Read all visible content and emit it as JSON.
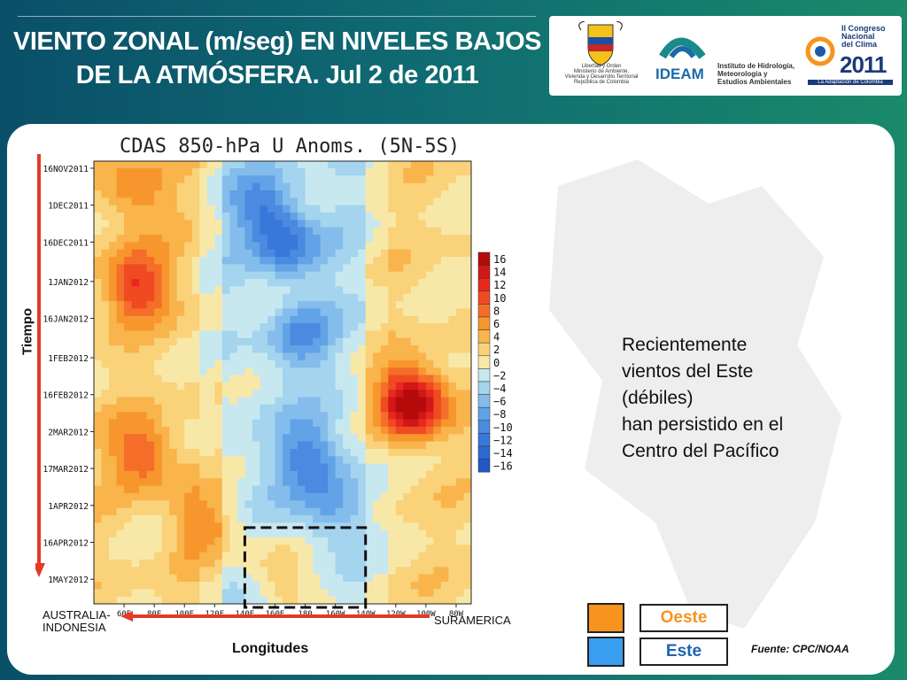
{
  "header": {
    "title_line1": "VIENTO ZONAL (m/seg) EN NIVELES BAJOS",
    "title_line2": "DE LA ATMÓSFERA. Jul 2 de 2011"
  },
  "logos": {
    "ministry_lines": [
      "Libertad y Orden",
      "Ministerio de Ambiente,",
      "Vivienda y Desarrollo Territorial",
      "República de Colombia"
    ],
    "ideam_name": "IDEAM",
    "ideam_lines": [
      "Instituto de Hidrología,",
      "Meteorología y",
      "Estudios Ambientales"
    ],
    "congreso_lines": [
      "II Congreso",
      "Nacional",
      "del Clima"
    ],
    "congreso_year": "2011",
    "congreso_tagline": "La Adaptación de Colombia"
  },
  "chart_data": {
    "type": "heatmap",
    "title": "CDAS 850-hPa U Anoms. (5N-5S)",
    "xlabel": "Longitudes",
    "ylabel": "Tiempo",
    "x_ticks": [
      "60E",
      "80E",
      "100E",
      "120E",
      "140E",
      "160E",
      "180",
      "160W",
      "140W",
      "120W",
      "100W",
      "80W"
    ],
    "y_ticks": [
      "16NOV2011",
      "1DEC2011",
      "16DEC2011",
      "1JAN2012",
      "16JAN2012",
      "1FEB2012",
      "16FEB2012",
      "2MAR2012",
      "17MAR2012",
      "1APR2012",
      "16APR2012",
      "1MAY2012"
    ],
    "colorbar_levels": [
      "16",
      "14",
      "12",
      "10",
      "8",
      "6",
      "4",
      "2",
      "0",
      "−2",
      "−4",
      "−6",
      "−8",
      "−10",
      "−12",
      "−14",
      "−16"
    ],
    "colorbar_colors": [
      "#b40a0a",
      "#d01818",
      "#e8281e",
      "#f04a22",
      "#f46e2a",
      "#f8962e",
      "#f9b44c",
      "#f9d27a",
      "#f8e8a8",
      "#c8e8f0",
      "#a4d4ee",
      "#84bcec",
      "#62a2e6",
      "#4a8ae0",
      "#3878d8",
      "#2c68d2",
      "#2058c8"
    ],
    "region_labels": {
      "west": "AUSTRALIA-INDONESIA",
      "east": "SURAMERICA"
    },
    "anomalies": [
      {
        "lon": 65,
        "date": "1JAN2012",
        "value": 10
      },
      {
        "lon": 65,
        "date": "24NOV2011",
        "value": 6
      },
      {
        "lon": 70,
        "date": "10MAR2012",
        "value": 8
      },
      {
        "lon": 110,
        "date": "6APR2012",
        "value": 6
      },
      {
        "lon": 160,
        "date": "27APR2012",
        "value": 6
      },
      {
        "lon": 245,
        "date": "16FEB2012",
        "value": 10
      },
      {
        "lon": 250,
        "date": "19FEB2012",
        "value": 8
      },
      {
        "lon": 165,
        "date": "16DEC2011",
        "value": -8
      },
      {
        "lon": 180,
        "date": "10MAR2012",
        "value": -8
      },
      {
        "lon": 175,
        "date": "22JAN2012",
        "value": -6
      },
      {
        "lon": 195,
        "date": "1APR2012",
        "value": -6
      },
      {
        "lon": 150,
        "date": "1DEC2011",
        "value": -8
      }
    ],
    "box": {
      "lon_min": 140,
      "lon_max": 220,
      "date_min": "10APR2012",
      "date_max": "2JUL2012"
    }
  },
  "annotation": {
    "lines": [
      "Recientemente",
      "vientos del Este",
      "(débiles)",
      "han persistido en el",
      "Centro del Pacífico"
    ]
  },
  "legend": {
    "items": [
      {
        "label": "Oeste",
        "color": "#f7941d",
        "text_color": "#f7941d"
      },
      {
        "label": "Este",
        "color": "#3a9ef0",
        "text_color": "#1e64b4"
      }
    ]
  },
  "source": "Fuente: CPC/NOAA"
}
